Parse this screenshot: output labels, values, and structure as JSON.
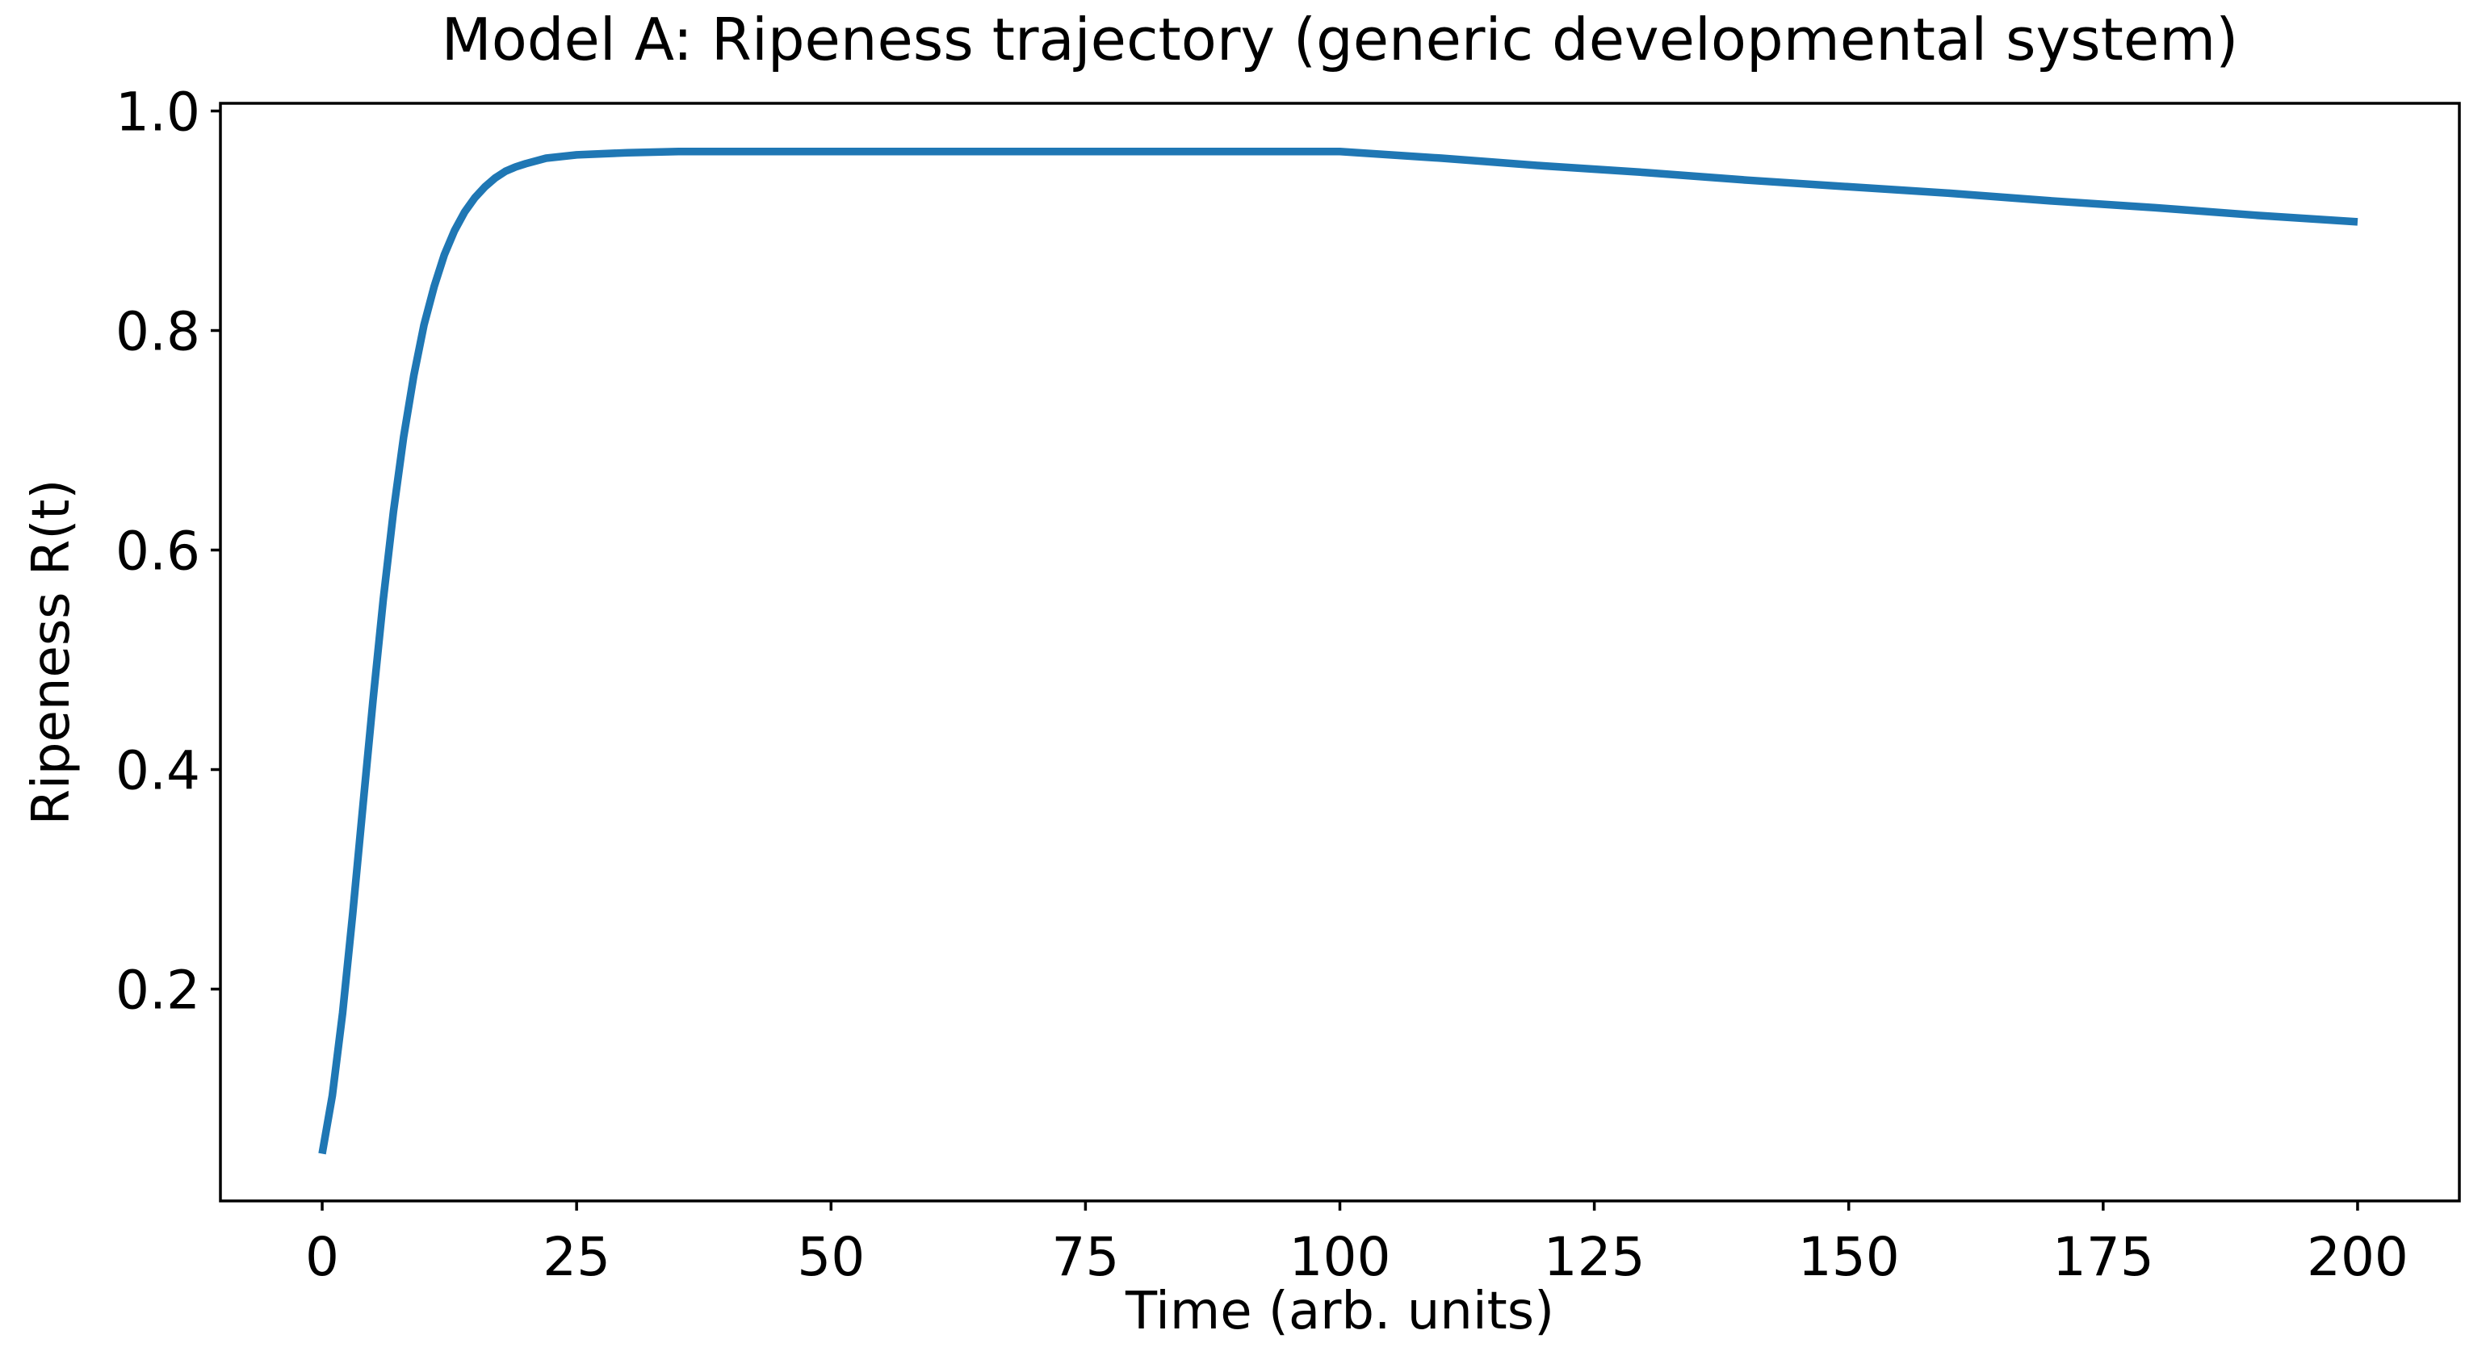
{
  "chart_data": {
    "type": "line",
    "title": "Model A: Ripeness trajectory (generic developmental system)",
    "xlabel": "Time (arb. units)",
    "ylabel": "Ripeness R(t)",
    "xlim": [
      -10,
      210
    ],
    "ylim": [
      0.007,
      1.007
    ],
    "grid": false,
    "legend": null,
    "background_color": "#ffffff",
    "spine_color": "#000000",
    "line_color": "#1f77b4",
    "xticks": {
      "values": [
        0,
        25,
        50,
        75,
        100,
        125,
        150,
        175,
        200
      ],
      "labels": [
        "0",
        "25",
        "50",
        "75",
        "100",
        "125",
        "150",
        "175",
        "200"
      ]
    },
    "yticks": {
      "values": [
        0.2,
        0.4,
        0.6,
        0.8,
        1.0
      ],
      "labels": [
        "0.2",
        "0.4",
        "0.6",
        "0.8",
        "1.0"
      ]
    },
    "series": [
      {
        "name": "Ripeness R(t)",
        "x": [
          0,
          1,
          2,
          3,
          4,
          5,
          6,
          7,
          8,
          9,
          10,
          11,
          12,
          13,
          14,
          15,
          16,
          17,
          18,
          19,
          20,
          22,
          25,
          30,
          35,
          40,
          50,
          60,
          70,
          80,
          90,
          100,
          110,
          120,
          130,
          140,
          150,
          160,
          170,
          180,
          190,
          200
        ],
        "y": [
          0.05,
          0.103,
          0.178,
          0.269,
          0.367,
          0.464,
          0.555,
          0.635,
          0.703,
          0.759,
          0.805,
          0.84,
          0.869,
          0.891,
          0.908,
          0.921,
          0.931,
          0.939,
          0.945,
          0.949,
          0.952,
          0.957,
          0.96,
          0.962,
          0.963,
          0.963,
          0.963,
          0.963,
          0.963,
          0.963,
          0.963,
          0.963,
          0.957,
          0.95,
          0.944,
          0.937,
          0.931,
          0.925,
          0.918,
          0.912,
          0.905,
          0.899
        ]
      }
    ],
    "annotations": {
      "start_value": 0.05,
      "plateau_value": 0.963,
      "peak_time": 100,
      "end_value": 0.899
    }
  }
}
